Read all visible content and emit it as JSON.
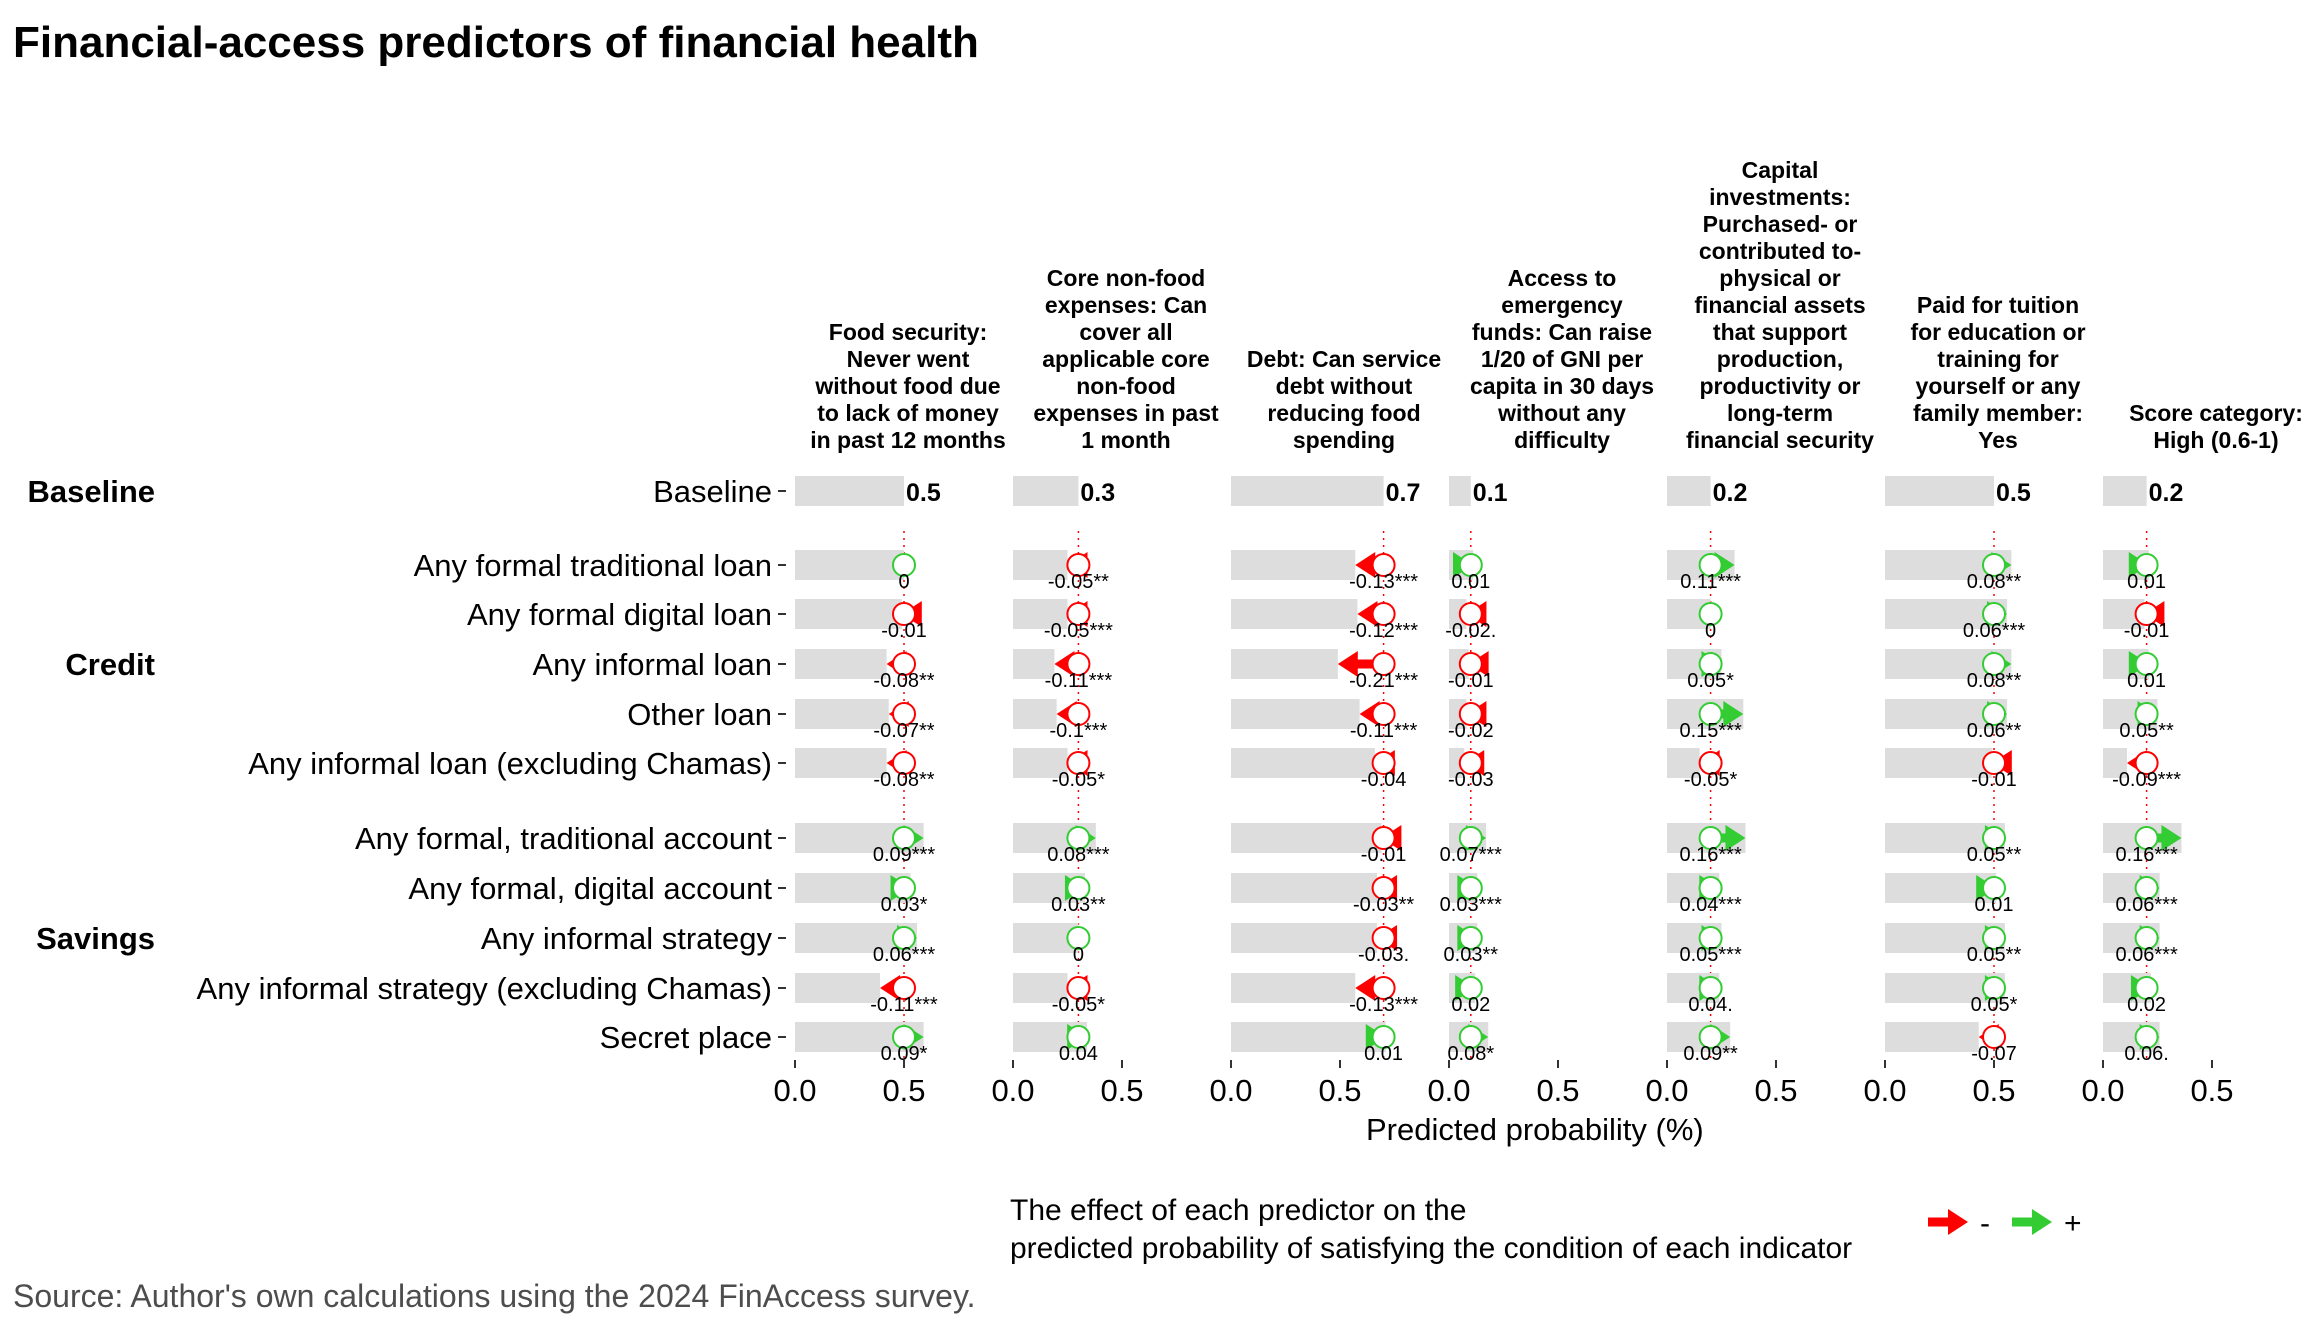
{
  "title": "Financial-access predictors of financial health",
  "source": "Source: Author's own calculations using the 2024 FinAccess survey.",
  "colors": {
    "negative": "#ff0000",
    "positive": "#33cc33",
    "bar": "#dddddd",
    "refline": "#ff0000"
  },
  "chart_data": {
    "type": "bar",
    "xlabel": "Predicted probability (%)",
    "xlim": [
      0,
      0.6
    ],
    "xticks": [
      "0.0",
      "0.5"
    ],
    "groups": [
      {
        "name": "Baseline",
        "rows": [
          "Baseline"
        ]
      },
      {
        "name": "Credit",
        "rows": [
          "Any formal traditional loan",
          "Any formal digital loan",
          "Any informal loan",
          "Other loan",
          "Any informal loan (excluding Chamas)"
        ]
      },
      {
        "name": "Savings",
        "rows": [
          "Any formal, traditional account",
          "Any formal, digital account",
          "Any informal strategy",
          "Any informal strategy (excluding Chamas)",
          "Secret place"
        ]
      }
    ],
    "predictors": [
      "Any formal traditional loan",
      "Any formal digital loan",
      "Any informal loan",
      "Other loan",
      "Any informal loan (excluding Chamas)",
      "Any formal, traditional account",
      "Any formal, digital account",
      "Any informal strategy",
      "Any informal strategy (excluding Chamas)",
      "Secret place"
    ],
    "panels": [
      {
        "indicator": "Food security: Never went without food due to lack of money in past 12 months",
        "baseline": 0.5,
        "baseline_label": "0.5",
        "effects": [
          0,
          -0.01,
          -0.08,
          -0.07,
          -0.08,
          0.09,
          0.03,
          0.06,
          -0.11,
          0.09
        ],
        "labels": [
          "0",
          "-0.01",
          "-0.08**",
          "-0.07**",
          "-0.08**",
          "0.09***",
          "0.03*",
          "0.06***",
          "-0.11***",
          "0.09*"
        ]
      },
      {
        "indicator": "Core non-food expenses: Can cover all applicable core non-food expenses in past 1 month",
        "baseline": 0.3,
        "baseline_label": "0.3",
        "effects": [
          -0.05,
          -0.05,
          -0.11,
          -0.1,
          -0.05,
          0.08,
          0.03,
          0,
          -0.05,
          0.04
        ],
        "labels": [
          "-0.05**",
          "-0.05***",
          "-0.11***",
          "-0.1***",
          "-0.05*",
          "0.08***",
          "0.03**",
          "0",
          "-0.05*",
          "0.04"
        ]
      },
      {
        "indicator": "Debt: Can service debt without reducing food spending",
        "baseline": 0.7,
        "baseline_label": "0.7",
        "effects": [
          -0.13,
          -0.12,
          -0.21,
          -0.11,
          -0.04,
          -0.01,
          -0.03,
          -0.03,
          -0.13,
          0.01
        ],
        "labels": [
          "-0.13***",
          "-0.12***",
          "-0.21***",
          "-0.11***",
          "-0.04",
          "-0.01",
          "-0.03**",
          "-0.03.",
          "-0.13***",
          "0.01"
        ]
      },
      {
        "indicator": "Access to emergency funds: Can raise 1/20 of GNI per capita in 30 days without any difficulty",
        "baseline": 0.1,
        "baseline_label": "0.1",
        "effects": [
          0.01,
          -0.02,
          -0.01,
          -0.02,
          -0.03,
          0.07,
          0.03,
          0.03,
          0.02,
          0.08
        ],
        "labels": [
          "0.01",
          "-0.02.",
          "-0.01",
          "-0.02",
          "-0.03",
          "0.07***",
          "0.03***",
          "0.03**",
          "0.02",
          "0.08*"
        ]
      },
      {
        "indicator": "Capital investments: Purchased- or contributed to- physical or financial assets that support production, productivity or long-term financial security",
        "baseline": 0.2,
        "baseline_label": "0.2",
        "effects": [
          0.11,
          0,
          0.05,
          0.15,
          -0.05,
          0.16,
          0.04,
          0.05,
          0.04,
          0.09
        ],
        "labels": [
          "0.11***",
          "0",
          "0.05*",
          "0.15***",
          "-0.05*",
          "0.16***",
          "0.04***",
          "0.05***",
          "0.04.",
          "0.09**"
        ]
      },
      {
        "indicator": "Paid for tuition for education or training for yourself or any family member: Yes",
        "baseline": 0.5,
        "baseline_label": "0.5",
        "effects": [
          0.08,
          0.06,
          0.08,
          0.06,
          -0.01,
          0.05,
          0.01,
          0.05,
          0.05,
          -0.07
        ],
        "labels": [
          "0.08**",
          "0.06***",
          "0.08**",
          "0.06**",
          "-0.01",
          "0.05**",
          "0.01",
          "0.05**",
          "0.05*",
          "-0.07"
        ]
      },
      {
        "indicator": "Score category: High (0.6-1)",
        "baseline": 0.2,
        "baseline_label": "0.2",
        "effects": [
          0.01,
          -0.01,
          0.01,
          0.05,
          -0.09,
          0.16,
          0.06,
          0.06,
          0.02,
          0.06
        ],
        "labels": [
          "0.01",
          "-0.01",
          "0.01",
          "0.05**",
          "-0.09***",
          "0.16***",
          "0.06***",
          "0.06***",
          "0.02",
          "0.06."
        ]
      }
    ],
    "legend": {
      "title": [
        "The effect of each predictor on the",
        "predicted probability of satisfying the condition of each indicator"
      ],
      "items": [
        {
          "label": "-",
          "color": "#ff0000"
        },
        {
          "label": "+",
          "color": "#33cc33"
        }
      ]
    }
  }
}
